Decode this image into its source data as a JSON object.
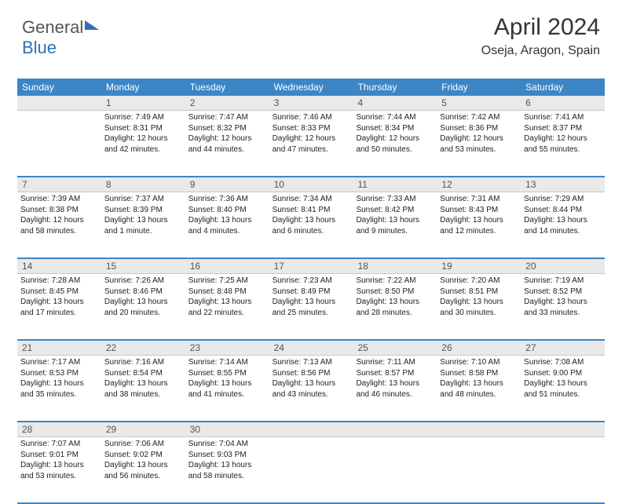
{
  "logo": {
    "text1": "General",
    "text2": "Blue"
  },
  "header": {
    "month_year": "April 2024",
    "location": "Oseja, Aragon, Spain"
  },
  "colors": {
    "header_bg": "#3d86c6",
    "daynum_bg": "#e9e9e9",
    "text": "#222222",
    "logo_gray": "#555555",
    "logo_blue": "#2f70b8"
  },
  "day_names": [
    "Sunday",
    "Monday",
    "Tuesday",
    "Wednesday",
    "Thursday",
    "Friday",
    "Saturday"
  ],
  "weeks": [
    {
      "nums": [
        "",
        "1",
        "2",
        "3",
        "4",
        "5",
        "6"
      ],
      "cells": [
        null,
        {
          "sunrise": "7:49 AM",
          "sunset": "8:31 PM",
          "daylight": "12 hours and 42 minutes."
        },
        {
          "sunrise": "7:47 AM",
          "sunset": "8:32 PM",
          "daylight": "12 hours and 44 minutes."
        },
        {
          "sunrise": "7:46 AM",
          "sunset": "8:33 PM",
          "daylight": "12 hours and 47 minutes."
        },
        {
          "sunrise": "7:44 AM",
          "sunset": "8:34 PM",
          "daylight": "12 hours and 50 minutes."
        },
        {
          "sunrise": "7:42 AM",
          "sunset": "8:36 PM",
          "daylight": "12 hours and 53 minutes."
        },
        {
          "sunrise": "7:41 AM",
          "sunset": "8:37 PM",
          "daylight": "12 hours and 55 minutes."
        }
      ]
    },
    {
      "nums": [
        "7",
        "8",
        "9",
        "10",
        "11",
        "12",
        "13"
      ],
      "cells": [
        {
          "sunrise": "7:39 AM",
          "sunset": "8:38 PM",
          "daylight": "12 hours and 58 minutes."
        },
        {
          "sunrise": "7:37 AM",
          "sunset": "8:39 PM",
          "daylight": "13 hours and 1 minute."
        },
        {
          "sunrise": "7:36 AM",
          "sunset": "8:40 PM",
          "daylight": "13 hours and 4 minutes."
        },
        {
          "sunrise": "7:34 AM",
          "sunset": "8:41 PM",
          "daylight": "13 hours and 6 minutes."
        },
        {
          "sunrise": "7:33 AM",
          "sunset": "8:42 PM",
          "daylight": "13 hours and 9 minutes."
        },
        {
          "sunrise": "7:31 AM",
          "sunset": "8:43 PM",
          "daylight": "13 hours and 12 minutes."
        },
        {
          "sunrise": "7:29 AM",
          "sunset": "8:44 PM",
          "daylight": "13 hours and 14 minutes."
        }
      ]
    },
    {
      "nums": [
        "14",
        "15",
        "16",
        "17",
        "18",
        "19",
        "20"
      ],
      "cells": [
        {
          "sunrise": "7:28 AM",
          "sunset": "8:45 PM",
          "daylight": "13 hours and 17 minutes."
        },
        {
          "sunrise": "7:26 AM",
          "sunset": "8:46 PM",
          "daylight": "13 hours and 20 minutes."
        },
        {
          "sunrise": "7:25 AM",
          "sunset": "8:48 PM",
          "daylight": "13 hours and 22 minutes."
        },
        {
          "sunrise": "7:23 AM",
          "sunset": "8:49 PM",
          "daylight": "13 hours and 25 minutes."
        },
        {
          "sunrise": "7:22 AM",
          "sunset": "8:50 PM",
          "daylight": "13 hours and 28 minutes."
        },
        {
          "sunrise": "7:20 AM",
          "sunset": "8:51 PM",
          "daylight": "13 hours and 30 minutes."
        },
        {
          "sunrise": "7:19 AM",
          "sunset": "8:52 PM",
          "daylight": "13 hours and 33 minutes."
        }
      ]
    },
    {
      "nums": [
        "21",
        "22",
        "23",
        "24",
        "25",
        "26",
        "27"
      ],
      "cells": [
        {
          "sunrise": "7:17 AM",
          "sunset": "8:53 PM",
          "daylight": "13 hours and 35 minutes."
        },
        {
          "sunrise": "7:16 AM",
          "sunset": "8:54 PM",
          "daylight": "13 hours and 38 minutes."
        },
        {
          "sunrise": "7:14 AM",
          "sunset": "8:55 PM",
          "daylight": "13 hours and 41 minutes."
        },
        {
          "sunrise": "7:13 AM",
          "sunset": "8:56 PM",
          "daylight": "13 hours and 43 minutes."
        },
        {
          "sunrise": "7:11 AM",
          "sunset": "8:57 PM",
          "daylight": "13 hours and 46 minutes."
        },
        {
          "sunrise": "7:10 AM",
          "sunset": "8:58 PM",
          "daylight": "13 hours and 48 minutes."
        },
        {
          "sunrise": "7:08 AM",
          "sunset": "9:00 PM",
          "daylight": "13 hours and 51 minutes."
        }
      ]
    },
    {
      "nums": [
        "28",
        "29",
        "30",
        "",
        "",
        "",
        ""
      ],
      "cells": [
        {
          "sunrise": "7:07 AM",
          "sunset": "9:01 PM",
          "daylight": "13 hours and 53 minutes."
        },
        {
          "sunrise": "7:06 AM",
          "sunset": "9:02 PM",
          "daylight": "13 hours and 56 minutes."
        },
        {
          "sunrise": "7:04 AM",
          "sunset": "9:03 PM",
          "daylight": "13 hours and 58 minutes."
        },
        null,
        null,
        null,
        null
      ]
    }
  ],
  "labels": {
    "sunrise": "Sunrise:",
    "sunset": "Sunset:",
    "daylight": "Daylight:"
  }
}
